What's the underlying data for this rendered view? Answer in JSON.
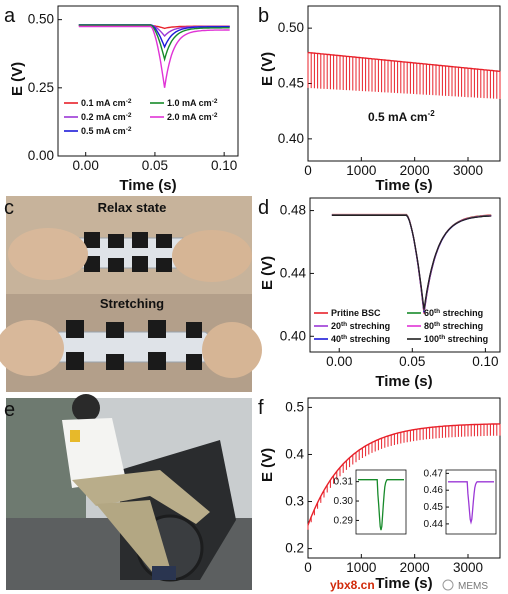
{
  "panels": {
    "a": "a",
    "b": "b",
    "c": "c",
    "d": "d",
    "e": "e",
    "f": "f"
  },
  "colors": {
    "red": "#e8212a",
    "purple": "#9b37d6",
    "blue": "#1d1ad9",
    "green": "#178a2a",
    "magenta": "#e033d6",
    "black": "#222222"
  },
  "chart_data": [
    {
      "id": "a",
      "type": "line",
      "xlabel": "Time (s)",
      "ylabel": "E (V)",
      "xlim": [
        -0.02,
        0.11
      ],
      "ylim": [
        0,
        0.55
      ],
      "xticks": [
        "0.00",
        "0.05",
        "0.10"
      ],
      "yticks": [
        "0.00",
        "0.25",
        "0.50"
      ],
      "legend_position": "bottom",
      "series": [
        {
          "name": "0.1 mA cm",
          "sup": "-2",
          "color": "#e8212a",
          "baseline": 0.478,
          "min": 0.468,
          "recovered": 0.476
        },
        {
          "name": "0.2 mA cm",
          "sup": "-2",
          "color": "#9b37d6",
          "baseline": 0.48,
          "min": 0.44,
          "recovered": 0.475
        },
        {
          "name": "0.5 mA cm",
          "sup": "-2",
          "color": "#1d1ad9",
          "baseline": 0.481,
          "min": 0.4,
          "recovered": 0.474
        },
        {
          "name": "1.0 mA cm",
          "sup": "-2",
          "color": "#178a2a",
          "baseline": 0.48,
          "min": 0.355,
          "recovered": 0.47
        },
        {
          "name": "2.0 mA cm",
          "sup": "-2",
          "color": "#e033d6",
          "baseline": 0.475,
          "min": 0.25,
          "recovered": 0.462
        }
      ]
    },
    {
      "id": "b",
      "type": "line",
      "xlabel": "Time (s)",
      "ylabel": "E (V)",
      "xlim": [
        0,
        3600
      ],
      "ylim": [
        0.38,
        0.52
      ],
      "xticks": [
        "0",
        "1000",
        "2000",
        "3000"
      ],
      "yticks": [
        "0.40",
        "0.45",
        "0.50"
      ],
      "annotation": "0.5 mA cm",
      "annotation_sup": "-2",
      "series": [
        {
          "color": "#e8212a",
          "upper_start": 0.478,
          "upper_end": 0.461,
          "lower_start": 0.446,
          "lower_end": 0.436,
          "spikes": 60
        }
      ]
    },
    {
      "id": "d",
      "type": "line",
      "xlabel": "Time (s)",
      "ylabel": "E (V)",
      "xlim": [
        -0.02,
        0.11
      ],
      "ylim": [
        0.39,
        0.488
      ],
      "xticks": [
        "0.00",
        "0.05",
        "0.10"
      ],
      "yticks": [
        "0.40",
        "0.44",
        "0.48"
      ],
      "legend_position": "bottom",
      "series": [
        {
          "name": "Pritine BSC",
          "color": "#e8212a",
          "baseline": 0.4775,
          "min": 0.4145
        },
        {
          "name": "20",
          "sup": "th",
          "suffix": " streching",
          "color": "#9b37d6",
          "baseline": 0.4772,
          "min": 0.415
        },
        {
          "name": "40",
          "sup": "th",
          "suffix": " streching",
          "color": "#1d1ad9",
          "baseline": 0.477,
          "min": 0.4155
        },
        {
          "name": "60",
          "sup": "th",
          "suffix": " streching",
          "color": "#178a2a",
          "baseline": 0.4773,
          "min": 0.416
        },
        {
          "name": "80",
          "sup": "th",
          "suffix": " streching",
          "color": "#e033d6",
          "baseline": 0.4771,
          "min": 0.4165
        },
        {
          "name": "100",
          "sup": "th",
          "suffix": " streching",
          "color": "#222222",
          "baseline": 0.4769,
          "min": 0.417
        }
      ]
    },
    {
      "id": "f",
      "type": "line",
      "xlabel": "Time (s)",
      "ylabel": "E (V)",
      "xlim": [
        0,
        3600
      ],
      "ylim": [
        0.18,
        0.52
      ],
      "xticks": [
        "0",
        "1000",
        "2000",
        "3000"
      ],
      "yticks": [
        "0.2",
        "0.3",
        "0.4",
        "0.5"
      ],
      "series": [
        {
          "color": "#e8212a",
          "upper_start": 0.25,
          "upper_end": 0.465,
          "lower_start": 0.24,
          "lower_end": 0.44,
          "spikes": 60
        }
      ],
      "insets": [
        {
          "color": "#178a2a",
          "ylim": [
            0.283,
            0.316
          ],
          "yticks": [
            "0.29",
            "0.30",
            "0.31"
          ],
          "baseline": 0.311,
          "min": 0.285
        },
        {
          "color": "#9b37d6",
          "ylim": [
            0.434,
            0.472
          ],
          "yticks": [
            "0.44",
            "0.45",
            "0.46",
            "0.47"
          ],
          "baseline": 0.465,
          "min": 0.441
        }
      ]
    }
  ],
  "photos": {
    "c_top_label": "Relax state",
    "c_bottom_label": "Stretching"
  },
  "watermark": {
    "site": "ybx8.cn",
    "brand": "MEMS"
  }
}
